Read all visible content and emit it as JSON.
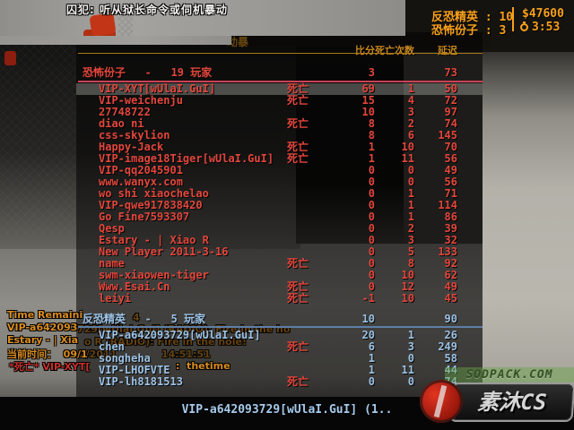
{
  "hud": {
    "hint_text": "囚犯: 听从狱长命令或伺机暴动",
    "score_line1": "反恐精英 : 10",
    "money": "$47600",
    "score_line2": "恐怖份子 : 3",
    "round_timer": "3:53",
    "timer_icon": "stopwatch-icon",
    "accent_color": "#f7a01b"
  },
  "scoreboard": {
    "title_fragment": "动暴",
    "columns": {
      "score": "比分",
      "deaths": "死亡次数",
      "latency": "延迟"
    },
    "dead_label": "死亡",
    "team_colors": {
      "terrorist": "#e2473d",
      "counter_terrorist": "#9cc2e5"
    },
    "teams": [
      {
        "id": "terrorist",
        "header": "恐怖份子   -   19 玩家",
        "score": "3",
        "latency": "73",
        "players": [
          {
            "name": "VIP-XYT[wUlaI.GuI]",
            "dead": true,
            "score": "69",
            "deaths": "1",
            "latency": "50",
            "highlight": true
          },
          {
            "name": "VIP-weichenju",
            "dead": true,
            "score": "15",
            "deaths": "4",
            "latency": "72"
          },
          {
            "name": "27748722",
            "dead": false,
            "score": "10",
            "deaths": "3",
            "latency": "97"
          },
          {
            "name": "diao ni",
            "dead": true,
            "score": "8",
            "deaths": "2",
            "latency": "74"
          },
          {
            "name": "css-skylion",
            "dead": false,
            "score": "8",
            "deaths": "6",
            "latency": "145"
          },
          {
            "name": "Happy-Jack",
            "dead": true,
            "score": "1",
            "deaths": "10",
            "latency": "70"
          },
          {
            "name": "VIP-image18Tiger[wUlaI.GuI]",
            "dead": true,
            "score": "1",
            "deaths": "11",
            "latency": "56"
          },
          {
            "name": "VIP-qq2045901",
            "dead": false,
            "score": "0",
            "deaths": "0",
            "latency": "49"
          },
          {
            "name": "www.wanyx.com",
            "dead": false,
            "score": "0",
            "deaths": "0",
            "latency": "56"
          },
          {
            "name": "wo shi xiaochelao",
            "dead": false,
            "score": "0",
            "deaths": "1",
            "latency": "71"
          },
          {
            "name": "VIP-qwe917838420",
            "dead": false,
            "score": "0",
            "deaths": "1",
            "latency": "114"
          },
          {
            "name": "Go Fine7593307",
            "dead": false,
            "score": "0",
            "deaths": "1",
            "latency": "86"
          },
          {
            "name": "Qesp",
            "dead": false,
            "score": "0",
            "deaths": "2",
            "latency": "39"
          },
          {
            "name": "Estary - | Xiao R",
            "dead": false,
            "score": "0",
            "deaths": "3",
            "latency": "32"
          },
          {
            "name": "New Player 2011-3-16",
            "dead": false,
            "score": "0",
            "deaths": "5",
            "latency": "133"
          },
          {
            "name": "name",
            "dead": true,
            "score": "0",
            "deaths": "8",
            "latency": "92"
          },
          {
            "name": "swm-xiaowen-tiger",
            "dead": false,
            "score": "0",
            "deaths": "10",
            "latency": "62"
          },
          {
            "name": "Www.Esai.Cn",
            "dead": true,
            "score": "0",
            "deaths": "12",
            "latency": "49"
          },
          {
            "name": "leiyi",
            "dead": true,
            "score": "-1",
            "deaths": "10",
            "latency": "45"
          }
        ]
      },
      {
        "id": "counter_terrorist",
        "header": "反恐精英   -   5 玩家",
        "score": "10",
        "latency": "90",
        "players": [
          {
            "name": "VIP-a642093729[wUlaI.GuI]",
            "dead": false,
            "score": "20",
            "deaths": "1",
            "latency": "26"
          },
          {
            "name": "chen",
            "dead": true,
            "score": "6",
            "deaths": "3",
            "latency": "249"
          },
          {
            "name": "songheha",
            "dead": false,
            "score": "1",
            "deaths": "0",
            "latency": "58"
          },
          {
            "name": "VIP-LHOFVTE",
            "dead": false,
            "score": "1",
            "deaths": "11",
            "latency": "44"
          },
          {
            "name": "VIP-lh8181513",
            "dead": true,
            "score": "0",
            "deaths": "0",
            "latency": "74"
          }
        ]
      }
    ]
  },
  "chat": {
    "fragments": [
      {
        "text": "Time Remaini",
        "color": "orange",
        "tone": "bright"
      },
      {
        "text": "4",
        "color": "orange",
        "tone": "dim"
      },
      {
        "text": "VIP-a642093",
        "color": "orange",
        "tone": "bright"
      },
      {
        "text": "729[wUlaI.GuI] (RADIO): Fire in the ho",
        "color": "orange",
        "tone": "dim"
      },
      {
        "text": "Estary - | Xia",
        "color": "orange",
        "tone": "bright"
      },
      {
        "text": "o R (RADIO): Fire in the hole!",
        "color": "orange",
        "tone": "dim"
      },
      {
        "text": "当前时间：  09/1",
        "color": "orange",
        "tone": "bright"
      },
      {
        "text": "2/2011",
        "color": "orange",
        "tone": "dim"
      },
      {
        "text": "14:51:51",
        "color": "orange",
        "tone": "dim"
      },
      {
        "text": "*死亡* VIP-XYT[",
        "color": "red",
        "tone": "bright"
      },
      {
        "text": ":  thetime",
        "color": "orange",
        "tone": "bright"
      }
    ]
  },
  "spectator": {
    "target_name": "VIP-a642093729[wUlaI.GuI] (1.."
  },
  "watermark": {
    "site": "SODPACK.COM",
    "logo": "素沐CS"
  }
}
